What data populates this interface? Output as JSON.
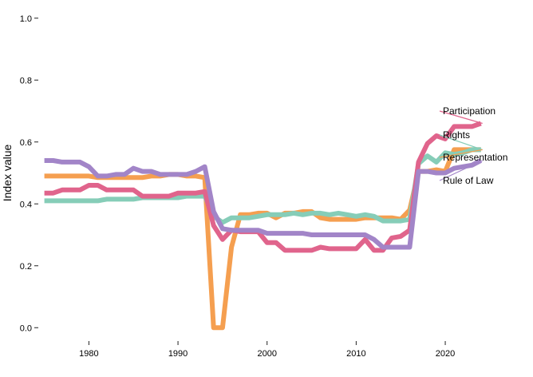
{
  "chart_data": {
    "type": "line",
    "title": "",
    "xlabel": "",
    "ylabel": "Index value",
    "xlim": [
      1974.5,
      2029.4
    ],
    "ylim": [
      -0.02,
      1.02
    ],
    "grid": false,
    "legend": "direct labels at right end of lines",
    "x_ticks": [
      1980,
      1990,
      2000,
      2010,
      2020
    ],
    "y_ticks": [
      "0.0",
      "0.2",
      "0.4",
      "0.6",
      "0.8",
      "1.0"
    ],
    "x": [
      1975,
      1976,
      1977,
      1978,
      1979,
      1980,
      1981,
      1982,
      1983,
      1984,
      1985,
      1986,
      1987,
      1988,
      1989,
      1990,
      1991,
      1992,
      1993,
      1994,
      1995,
      1996,
      1997,
      1998,
      1999,
      2000,
      2001,
      2002,
      2003,
      2004,
      2005,
      2006,
      2007,
      2008,
      2009,
      2010,
      2011,
      2012,
      2013,
      2014,
      2015,
      2016,
      2017,
      2018,
      2019,
      2020,
      2021,
      2022,
      2023,
      2024
    ],
    "series": [
      {
        "name": "Participation",
        "color": "#e0648c",
        "values": [
          0.435,
          0.435,
          0.445,
          0.445,
          0.445,
          0.46,
          0.46,
          0.445,
          0.445,
          0.445,
          0.445,
          0.425,
          0.425,
          0.425,
          0.425,
          0.435,
          0.435,
          0.435,
          0.44,
          0.33,
          0.285,
          0.315,
          0.31,
          0.31,
          0.31,
          0.275,
          0.275,
          0.25,
          0.25,
          0.25,
          0.25,
          0.26,
          0.255,
          0.255,
          0.255,
          0.255,
          0.285,
          0.25,
          0.25,
          0.29,
          0.295,
          0.315,
          0.535,
          0.595,
          0.62,
          0.61,
          0.65,
          0.65,
          0.65,
          0.66
        ]
      },
      {
        "name": "Rights",
        "color": "#86cdb8",
        "values": [
          0.41,
          0.41,
          0.41,
          0.41,
          0.41,
          0.41,
          0.41,
          0.415,
          0.415,
          0.415,
          0.415,
          0.42,
          0.42,
          0.42,
          0.42,
          0.42,
          0.425,
          0.425,
          0.425,
          0.36,
          0.34,
          0.355,
          0.355,
          0.355,
          0.36,
          0.365,
          0.365,
          0.365,
          0.37,
          0.365,
          0.37,
          0.37,
          0.365,
          0.37,
          0.365,
          0.36,
          0.365,
          0.36,
          0.345,
          0.345,
          0.345,
          0.35,
          0.53,
          0.555,
          0.535,
          0.565,
          0.56,
          0.565,
          0.575,
          0.575
        ]
      },
      {
        "name": "Representation",
        "color": "#f59f50",
        "values": [
          0.49,
          0.49,
          0.49,
          0.49,
          0.49,
          0.49,
          0.485,
          0.485,
          0.485,
          0.485,
          0.485,
          0.485,
          0.49,
          0.49,
          0.495,
          0.495,
          0.49,
          0.49,
          0.485,
          0.0,
          0.0,
          0.26,
          0.365,
          0.365,
          0.37,
          0.37,
          0.355,
          0.37,
          0.37,
          0.375,
          0.375,
          0.355,
          0.35,
          0.35,
          0.35,
          0.35,
          0.355,
          0.355,
          0.355,
          0.355,
          0.35,
          0.38,
          0.505,
          0.505,
          0.51,
          0.505,
          0.575,
          0.575,
          0.575,
          0.575
        ]
      },
      {
        "name": "Rule of Law",
        "color": "#a285c8",
        "values": [
          0.54,
          0.54,
          0.535,
          0.535,
          0.535,
          0.52,
          0.49,
          0.49,
          0.495,
          0.495,
          0.515,
          0.505,
          0.505,
          0.495,
          0.495,
          0.495,
          0.495,
          0.505,
          0.52,
          0.375,
          0.32,
          0.315,
          0.315,
          0.315,
          0.315,
          0.305,
          0.305,
          0.305,
          0.305,
          0.305,
          0.3,
          0.3,
          0.3,
          0.3,
          0.3,
          0.3,
          0.3,
          0.285,
          0.26,
          0.26,
          0.26,
          0.26,
          0.505,
          0.505,
          0.5,
          0.5,
          0.515,
          0.52,
          0.525,
          0.54
        ]
      }
    ]
  }
}
